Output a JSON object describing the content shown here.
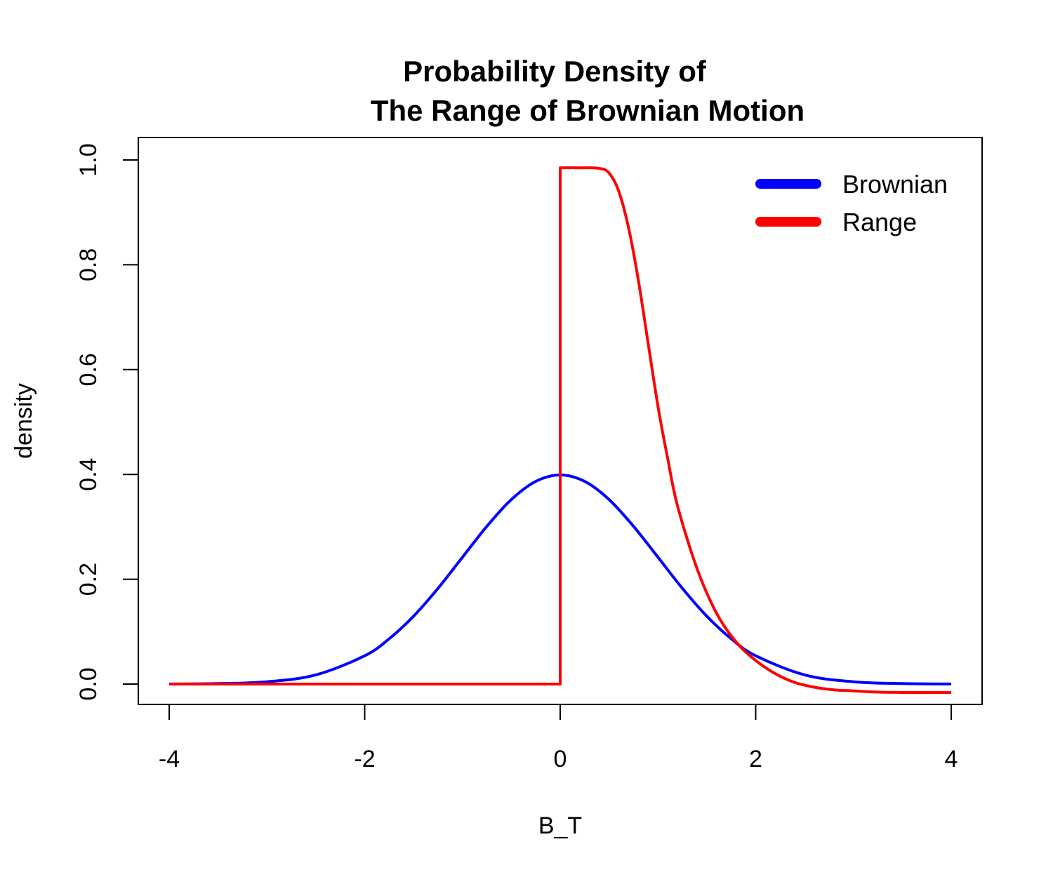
{
  "chart_data": {
    "type": "line",
    "title_line1": "Probability Density of",
    "title_line2": "The Range of Brownian Motion",
    "xlabel": "B_T",
    "ylabel": "density",
    "xlim": [
      -4,
      4
    ],
    "ylim": [
      0,
      1
    ],
    "x_ticks": [
      "-4",
      "-2",
      "0",
      "2",
      "4"
    ],
    "y_ticks": [
      "0.0",
      "0.2",
      "0.4",
      "0.6",
      "0.8",
      "1.0"
    ],
    "legend_position": "top-right",
    "series": [
      {
        "name": "Brownian",
        "color": "#0000ff",
        "x": [
          -4.0,
          -3.5,
          -3.0,
          -2.5,
          -2.0,
          -1.75,
          -1.5,
          -1.25,
          -1.0,
          -0.75,
          -0.5,
          -0.25,
          0.0,
          0.25,
          0.5,
          0.75,
          1.0,
          1.25,
          1.5,
          1.75,
          2.0,
          2.5,
          3.0,
          3.5,
          4.0
        ],
        "y": [
          0.0001,
          0.0009,
          0.0044,
          0.0175,
          0.054,
          0.0863,
          0.1295,
          0.1826,
          0.242,
          0.3011,
          0.3521,
          0.3867,
          0.3989,
          0.3867,
          0.3521,
          0.3011,
          0.242,
          0.1826,
          0.1295,
          0.0863,
          0.054,
          0.0175,
          0.0044,
          0.0009,
          0.0001
        ]
      },
      {
        "name": "Range",
        "color": "#ff0000",
        "x": [
          -4.0,
          0.0,
          0.0,
          0.2,
          0.4,
          0.5,
          0.6,
          0.7,
          0.8,
          0.9,
          1.0,
          1.1,
          1.2,
          1.4,
          1.6,
          1.8,
          2.0,
          2.2,
          2.4,
          2.6,
          2.8,
          3.0,
          3.2,
          3.5,
          4.0
        ],
        "y": [
          0.0,
          0.0,
          0.985,
          0.985,
          0.984,
          0.975,
          0.94,
          0.87,
          0.77,
          0.65,
          0.53,
          0.43,
          0.34,
          0.22,
          0.135,
          0.08,
          0.045,
          0.02,
          0.003,
          -0.006,
          -0.011,
          -0.013,
          -0.015,
          -0.016,
          -0.016
        ]
      }
    ]
  }
}
